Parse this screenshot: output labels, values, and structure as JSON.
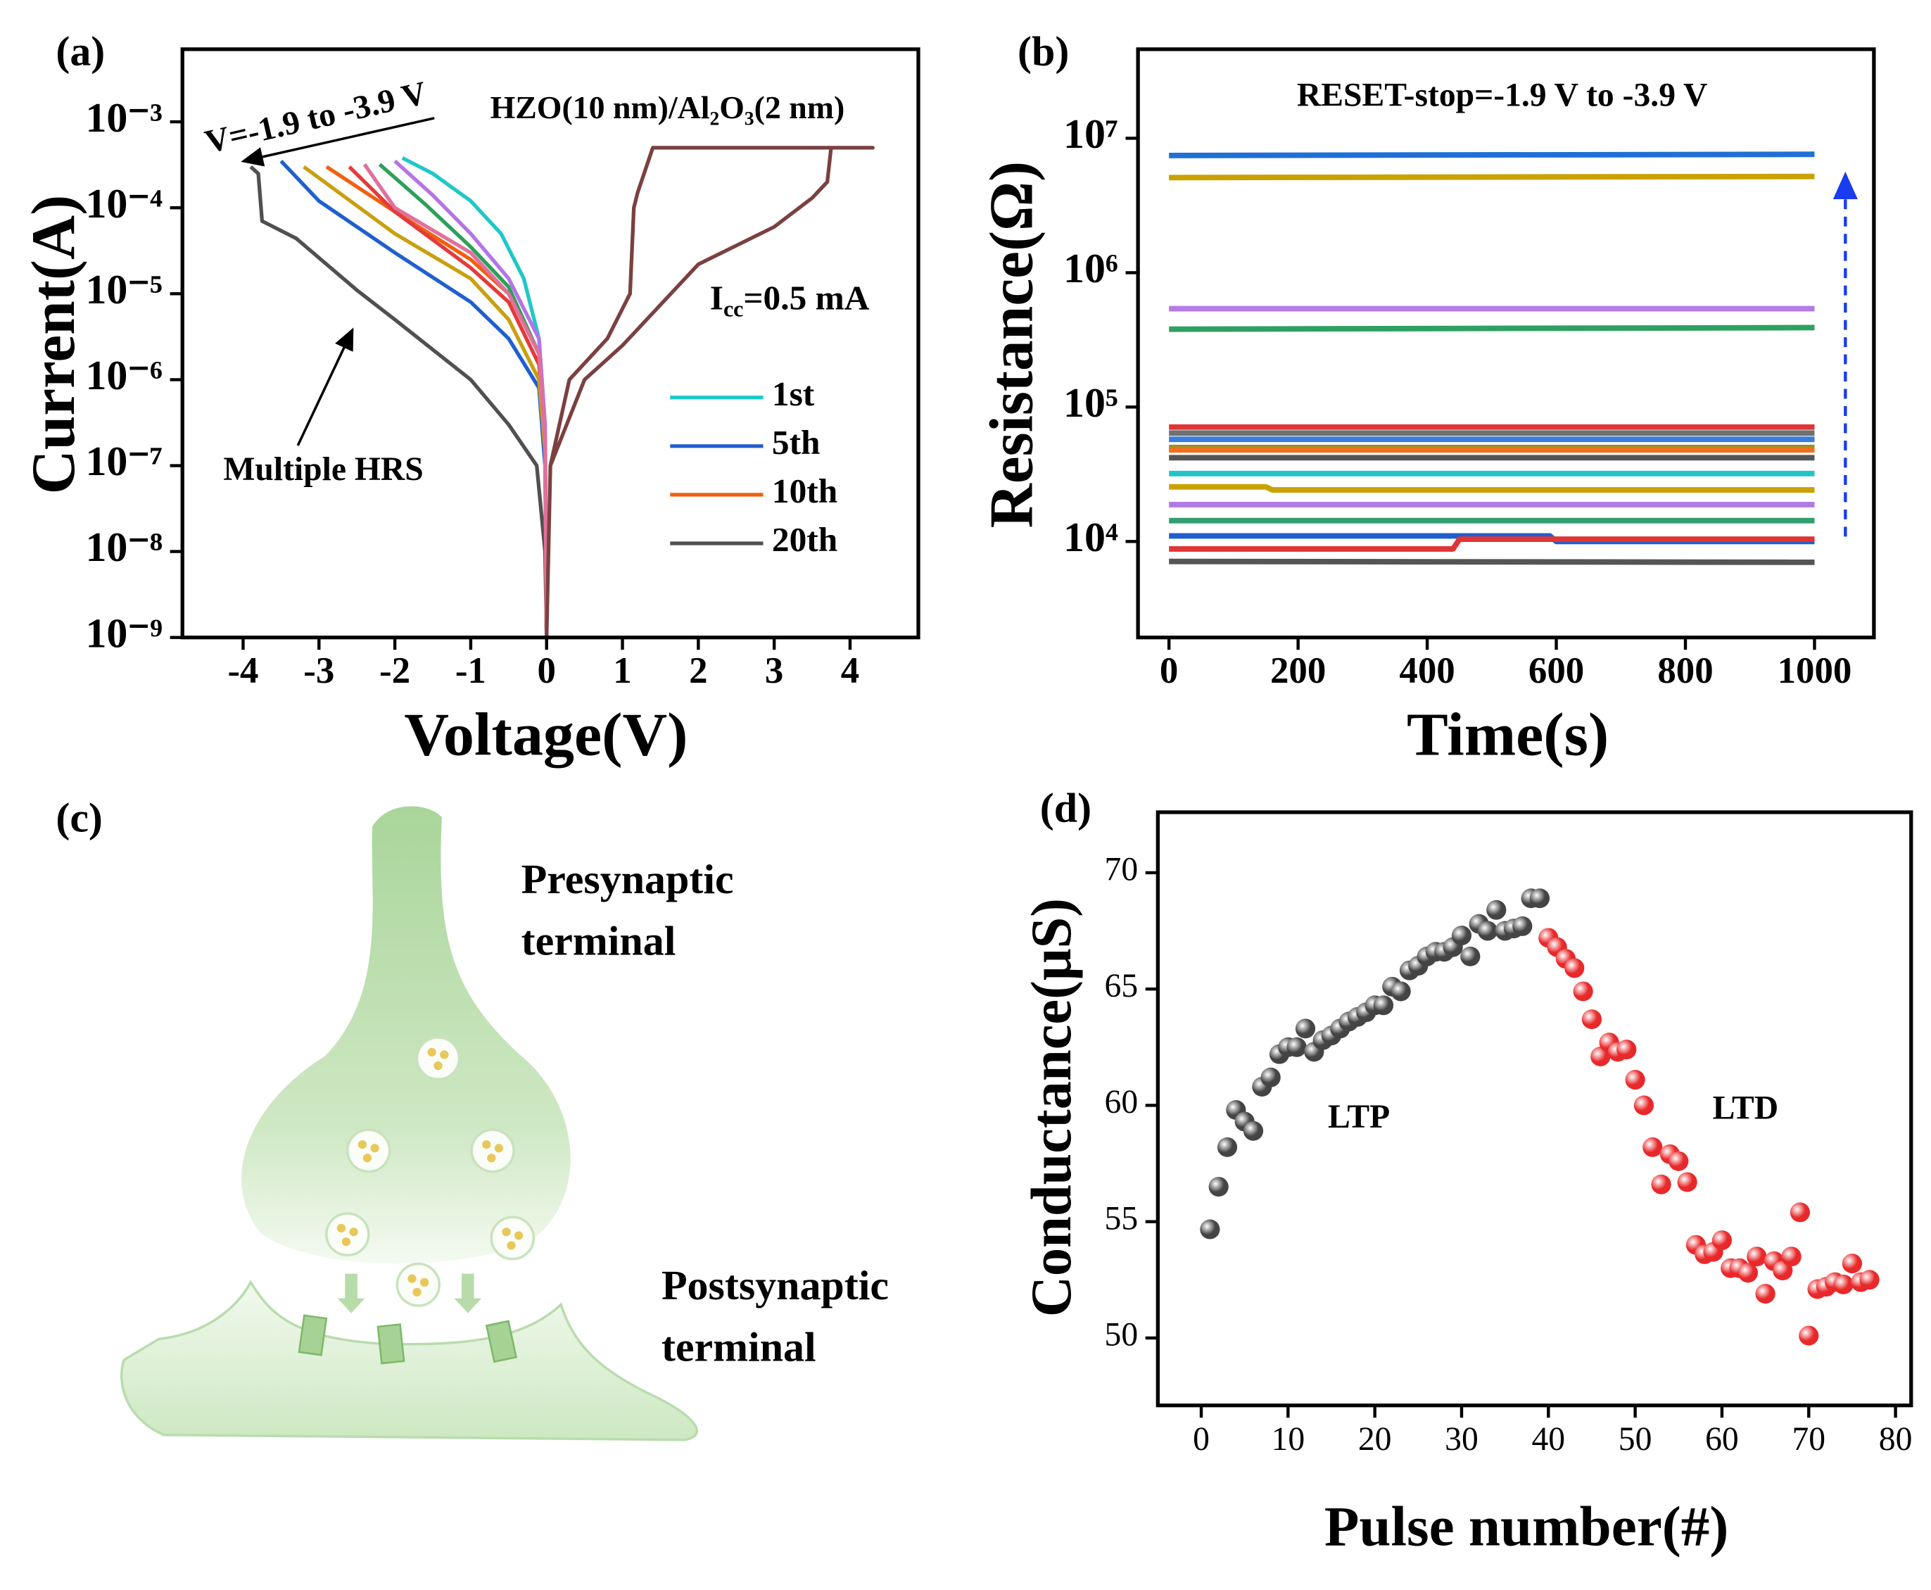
{
  "chart_data": [
    {
      "type": "line",
      "panel_label": "(a)",
      "xlabel": "Voltage(V)",
      "ylabel": "Current(A)",
      "yscale": "log",
      "xlim": [
        -4.8,
        4.9
      ],
      "ylim": [
        1e-09,
        0.007
      ],
      "xticks": [
        -4,
        -3,
        -2,
        -1,
        0,
        1,
        2,
        3,
        4
      ],
      "yticks": [
        {
          "value": 1e-09,
          "label": "10⁻⁹"
        },
        {
          "value": 1e-08,
          "label": "10⁻⁸"
        },
        {
          "value": 1e-07,
          "label": "10⁻⁷"
        },
        {
          "value": 1e-06,
          "label": "10⁻⁶"
        },
        {
          "value": 1e-05,
          "label": "10⁻⁵"
        },
        {
          "value": 0.0001,
          "label": "10⁻⁴"
        },
        {
          "value": 0.001,
          "label": "10⁻³"
        }
      ],
      "legend": "lower right",
      "annotations": [
        {
          "text": "V=-1.9 to -3.9 V"
        },
        {
          "text": "HZO(10 nm)/Al₂O₃(2 nm)"
        },
        {
          "parts": [
            "I",
            "cc",
            "=0.5 mA"
          ]
        },
        {
          "text": "Multiple HRS"
        }
      ],
      "series": [
        {
          "name": "1st",
          "color": "#1fc8c8",
          "x": [
            0,
            -0.02,
            -0.1,
            -0.3,
            -0.6,
            -1.0,
            -1.5,
            -1.9
          ],
          "values": [
            1e-09,
            3e-07,
            3e-06,
            1.5e-05,
            5e-05,
            0.00012,
            0.00025,
            0.00038
          ]
        },
        {
          "name": "5th",
          "color": "#1f5fd0",
          "x": [
            0,
            -0.02,
            -0.1,
            -0.5,
            -1,
            -2,
            -3,
            -3.5
          ],
          "values": [
            1e-09,
            1e-07,
            8e-07,
            3e-06,
            8e-06,
            3e-05,
            0.00012,
            0.00035
          ]
        },
        {
          "name": "10th",
          "color": "#f06010",
          "x": [
            0,
            -0.02,
            -0.1,
            -0.5,
            -1,
            -2,
            -2.9
          ],
          "values": [
            1e-09,
            2e-07,
            2e-06,
            1e-05,
            2.5e-05,
            9e-05,
            0.0003
          ]
        },
        {
          "name": "20th",
          "color": "#505050",
          "x": [
            0,
            -0.02,
            -0.13,
            -0.5,
            -1,
            -2,
            -2.5,
            -3.3,
            -3.75,
            -3.8,
            -3.9
          ],
          "values": [
            1e-09,
            1e-08,
            1e-07,
            3e-07,
            1e-06,
            5e-06,
            1.1e-05,
            4.4e-05,
            7e-05,
            0.00025,
            0.0003
          ]
        },
        {
          "color": "#2ca05a",
          "x": [
            0,
            -0.02,
            -0.1,
            -0.5,
            -1,
            -1.6,
            -2.2
          ],
          "values": [
            1e-09,
            2e-07,
            2e-06,
            1.2e-05,
            3.5e-05,
            0.00011,
            0.00032
          ]
        },
        {
          "color": "#b574e6",
          "x": [
            0,
            -0.02,
            -0.1,
            -0.5,
            -1,
            -1.5,
            -2.0
          ],
          "values": [
            1e-09,
            3e-07,
            3e-06,
            1.5e-05,
            5e-05,
            0.00014,
            0.00035
          ]
        },
        {
          "color": "#e33b3b",
          "x": [
            0,
            -0.02,
            -0.1,
            -0.5,
            -1,
            -2,
            -2.6
          ],
          "values": [
            1e-09,
            2e-07,
            1.5e-06,
            8e-06,
            2e-05,
            9e-05,
            0.0003
          ]
        },
        {
          "color": "#c8a010",
          "x": [
            0,
            -0.02,
            -0.1,
            -0.5,
            -1,
            -2,
            -3.2
          ],
          "values": [
            1e-09,
            1.5e-07,
            1e-06,
            5e-06,
            1.5e-05,
            5e-05,
            0.0003
          ]
        },
        {
          "color": "#e0709c",
          "x": [
            0,
            -0.02,
            -0.1,
            -0.5,
            -1,
            -2,
            -2.4
          ],
          "values": [
            1e-09,
            2e-07,
            2e-06,
            1e-05,
            3e-05,
            0.0001,
            0.00032
          ]
        },
        {
          "color": "#7b4040",
          "x": [
            0,
            0.05,
            0.5,
            1,
            2,
            3,
            3.5,
            3.7,
            3.75,
            4.3,
            1.4,
            1.2,
            1.15,
            1.1,
            0.8,
            0.3,
            0.05,
            0
          ],
          "values": [
            1e-09,
            1e-07,
            1e-06,
            2.5e-06,
            2.2e-05,
            6e-05,
            0.00013,
            0.0002,
            0.0005,
            0.0005,
            0.0005,
            0.00015,
            0.0001,
            1e-05,
            3e-06,
            1e-06,
            1e-07,
            1e-09
          ]
        }
      ]
    },
    {
      "type": "line",
      "panel_label": "(b)",
      "xlabel": "Time(s)",
      "ylabel": "Resistance(Ω)",
      "yscale": "log",
      "xlim": [
        -48,
        1092
      ],
      "ylim": [
        1930,
        46000000
      ],
      "xticks": [
        0,
        200,
        400,
        600,
        800,
        1000
      ],
      "yticks": [
        {
          "value": 10000,
          "label": "10⁴"
        },
        {
          "value": 100000,
          "label": "10⁵"
        },
        {
          "value": 1000000,
          "label": "10⁶"
        },
        {
          "value": 10000000,
          "label": "10⁷"
        }
      ],
      "annotations": [
        {
          "text": "RESET-stop=-1.9 V to -3.9 V"
        }
      ],
      "series": [
        {
          "color": "#1f6fd6",
          "x": [
            0,
            1000
          ],
          "values": [
            7450000,
            7600000
          ]
        },
        {
          "color": "#c9a100",
          "x": [
            0,
            1000
          ],
          "values": [
            5100000,
            5200000
          ]
        },
        {
          "color": "#b57be6",
          "x": [
            0,
            1000
          ],
          "values": [
            540000,
            540000
          ]
        },
        {
          "color": "#2ea062",
          "x": [
            0,
            1000
          ],
          "values": [
            380000,
            390000
          ]
        },
        {
          "color": "#e03535",
          "x": [
            0,
            1000
          ],
          "values": [
            71000,
            71000
          ]
        },
        {
          "color": "#707070",
          "x": [
            0,
            1000
          ],
          "values": [
            64000,
            64000
          ]
        },
        {
          "color": "#3a7de0",
          "x": [
            0,
            1000
          ],
          "values": [
            57500,
            57500
          ]
        },
        {
          "color": "#a08c20",
          "x": [
            0,
            1000
          ],
          "values": [
            50000,
            50000
          ]
        },
        {
          "color": "#f07020",
          "x": [
            0,
            1000
          ],
          "values": [
            48000,
            48000
          ]
        },
        {
          "color": "#555555",
          "x": [
            0,
            1000
          ],
          "values": [
            42000,
            42000
          ]
        },
        {
          "color": "#22c4c8",
          "x": [
            0,
            1000
          ],
          "values": [
            32000,
            32000
          ]
        },
        {
          "color": "#c9a100",
          "x": [
            0,
            150,
            160,
            1000
          ],
          "values": [
            25500,
            25500,
            24200,
            24200
          ]
        },
        {
          "color": "#b07ae6",
          "x": [
            0,
            1000
          ],
          "values": [
            18800,
            18800
          ]
        },
        {
          "color": "#30a070",
          "x": [
            0,
            1000
          ],
          "values": [
            14300,
            14300
          ]
        },
        {
          "color": "#1f5fd0",
          "x": [
            0,
            590,
            600,
            1000
          ],
          "values": [
            11000,
            11000,
            10000,
            10000
          ]
        },
        {
          "color": "#e03535",
          "x": [
            0,
            440,
            450,
            1000
          ],
          "values": [
            8800,
            8800,
            10400,
            10400
          ]
        },
        {
          "color": "#555555",
          "x": [
            0,
            1000
          ],
          "values": [
            7100,
            7000
          ]
        }
      ]
    },
    {
      "type": "scatter",
      "panel_label": "(d)",
      "xlabel": "Pulse number(#)",
      "ylabel": "Conductance(μS)",
      "xlim": [
        -5,
        81.8
      ],
      "ylim": [
        47.1,
        72.6
      ],
      "xticks": [
        0,
        10,
        20,
        30,
        40,
        50,
        60,
        70,
        80
      ],
      "yticks": [
        50,
        55,
        60,
        65,
        70
      ],
      "annotations": [
        {
          "text": "LTP"
        },
        {
          "text": "LTD",
          "color": "#e8282a"
        }
      ],
      "series": [
        {
          "color": "#444444",
          "x": [
            1,
            2,
            3,
            4,
            5,
            6,
            7,
            8,
            9,
            10,
            11,
            12,
            13,
            14,
            15,
            16,
            17,
            18,
            19,
            20,
            21,
            22,
            23,
            24,
            25,
            26,
            27,
            28,
            29,
            30,
            31,
            32,
            33,
            34,
            35,
            36,
            37,
            38,
            39
          ],
          "values": [
            54.67,
            56.5,
            58.2,
            59.8,
            59.3,
            58.9,
            60.8,
            61.2,
            62.2,
            62.5,
            62.5,
            63.3,
            62.3,
            62.8,
            63.0,
            63.3,
            63.6,
            63.8,
            64.0,
            64.3,
            64.3,
            65.1,
            64.9,
            65.8,
            66.0,
            66.4,
            66.6,
            66.6,
            66.8,
            67.3,
            66.4,
            67.8,
            67.5,
            68.4,
            67.5,
            67.6,
            67.7,
            68.9,
            68.9
          ]
        },
        {
          "color": "#e8282a",
          "x": [
            40,
            41,
            42,
            43,
            44,
            45,
            46,
            47,
            48,
            49,
            50,
            51,
            52,
            53,
            54,
            55,
            56,
            57,
            58,
            59,
            60,
            61,
            62,
            63,
            64,
            65,
            66,
            67,
            68,
            69,
            70,
            71,
            72,
            73,
            74,
            75,
            76,
            77
          ],
          "values": [
            67.2,
            66.8,
            66.3,
            65.9,
            64.9,
            63.7,
            62.1,
            62.7,
            62.3,
            62.4,
            61.1,
            60.0,
            58.2,
            56.6,
            57.9,
            57.6,
            56.7,
            54.0,
            53.6,
            53.7,
            54.2,
            53.0,
            53.0,
            52.8,
            53.5,
            51.9,
            53.3,
            52.9,
            53.5,
            55.4,
            50.1,
            52.1,
            52.2,
            52.4,
            52.3,
            53.2,
            52.4,
            52.5
          ]
        }
      ]
    }
  ],
  "diagram": {
    "label": "(c)",
    "presynaptic": [
      "Presynaptic",
      "terminal"
    ],
    "postsynaptic": [
      "Postsynaptic",
      "terminal"
    ]
  }
}
